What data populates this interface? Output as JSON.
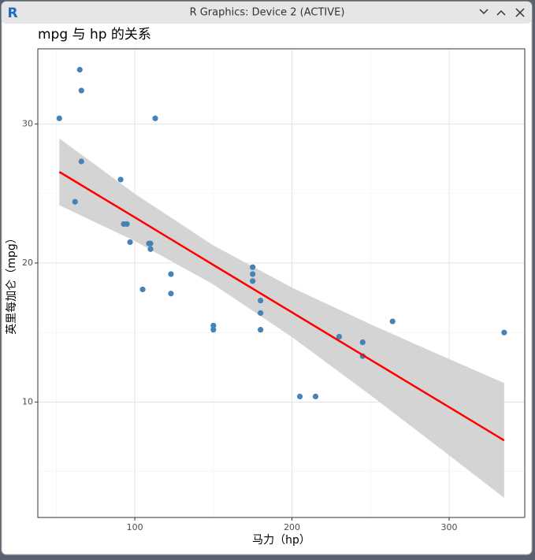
{
  "window": {
    "icon": "R",
    "title": "R Graphics: Device 2 (ACTIVE)"
  },
  "chart_data": {
    "type": "scatter",
    "title": "mpg 与 hp 的关系",
    "x_label": "马力（hp）",
    "y_label": "英里每加仑（mpg）",
    "x": [
      110,
      110,
      93,
      110,
      175,
      105,
      245,
      62,
      95,
      123,
      123,
      180,
      180,
      180,
      205,
      215,
      230,
      66,
      52,
      65,
      97,
      150,
      150,
      245,
      175,
      66,
      91,
      113,
      264,
      175,
      335,
      109
    ],
    "values": [
      21.0,
      21.0,
      22.8,
      21.4,
      18.7,
      18.1,
      14.3,
      24.4,
      22.8,
      19.2,
      17.8,
      16.4,
      17.3,
      15.2,
      10.4,
      10.4,
      14.7,
      32.4,
      30.4,
      33.9,
      21.5,
      15.5,
      15.2,
      13.3,
      19.2,
      27.3,
      26.0,
      30.4,
      15.8,
      19.7,
      15.0,
      21.4
    ],
    "color": "#4682b4",
    "fit": {
      "x": [
        52,
        100,
        150,
        200,
        250,
        300,
        335
      ],
      "y": [
        26.55,
        23.28,
        19.86,
        16.45,
        13.04,
        9.63,
        7.24
      ],
      "lower": [
        24.15,
        21.58,
        18.46,
        14.67,
        10.49,
        6.17,
        3.11
      ],
      "upper": [
        28.95,
        24.98,
        21.26,
        18.23,
        15.59,
        13.09,
        11.37
      ],
      "color": "#ff0000",
      "band_color": "#d4d4d4"
    },
    "xlim": [
      38.3,
      348.1
    ],
    "ylim": [
      1.7,
      35.4
    ],
    "xticks": [
      100,
      200,
      300
    ],
    "yticks": [
      10,
      20,
      30
    ],
    "x_minor": [
      50,
      150,
      250
    ],
    "y_minor": [
      5,
      15,
      25
    ],
    "grid": true
  }
}
